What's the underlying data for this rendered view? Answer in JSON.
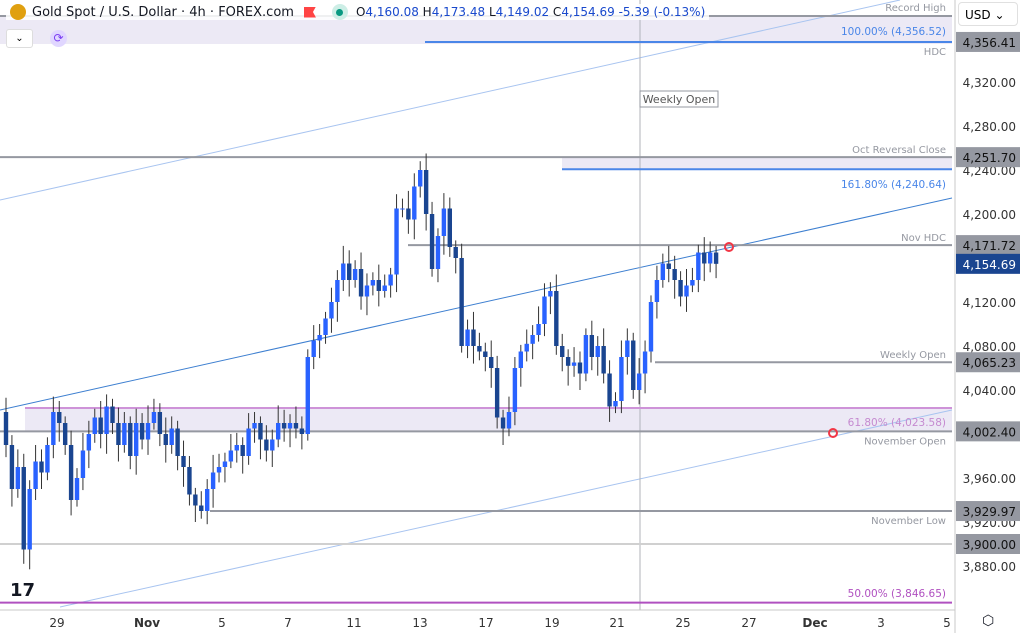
{
  "header": {
    "symbol": "Gold Spot / U.S. Dollar · 4h · FOREX.com",
    "open": "4,160.08",
    "high": "4,173.48",
    "low": "4,149.02",
    "close": "4,154.69",
    "change": "-5.39 (-0.13%)",
    "o": "O",
    "h": "H",
    "l": "L",
    "c": "C"
  },
  "currency": "USD",
  "colors": {
    "up": "#2962ff",
    "down": "#1a4590",
    "level": "#9598a1",
    "fib": "#4a86e8",
    "pink": "#ce93d8",
    "band": "#ece9f5"
  },
  "levels": [
    {
      "label": "Record High",
      "price": 4390
    },
    {
      "label": "HDC",
      "price": 4356.41,
      "tag": "4,356.41"
    },
    {
      "label": "Oct Reversal Close",
      "price": 4251.7,
      "tag": "4,251.70"
    },
    {
      "label": "Nov HDC",
      "price": 4171.72,
      "tag": "4,171.72"
    },
    {
      "label": "Weekly Open",
      "price": 4065.23,
      "tag": "4,065.23"
    },
    {
      "label": "November Open",
      "price": 4002.4,
      "tag": "4,002.40"
    },
    {
      "label": "November Low",
      "price": 3929.97,
      "tag": "3,929.97"
    },
    {
      "label": "",
      "price": 3900.0,
      "tag": "3,900.00"
    }
  ],
  "fibs": {
    "f100": "100.00% (4,356.52)",
    "f1618": "161.80% (4,240.64)",
    "f618": "61.80% (4,023.58)",
    "f50": "50.00% (3,846.65)"
  },
  "weekly_open_tag": "Weekly Open",
  "last_price": "4,154.69",
  "y_ticks": [
    "4,320.00",
    "4,280.00",
    "4,240.00",
    "4,200.00",
    "4,120.00",
    "4,080.00",
    "4,040.00",
    "3,960.00",
    "3,920.00",
    "3,880.00"
  ],
  "y_tick_values": [
    4320,
    4280,
    4240,
    4200,
    4120,
    4080,
    4040,
    3960,
    3920,
    3880
  ],
  "x_ticks": [
    "29",
    "Nov",
    "5",
    "7",
    "11",
    "13",
    "17",
    "19",
    "21",
    "25",
    "27",
    "Dec",
    "3",
    "5"
  ],
  "closes": [
    4020,
    3990,
    3950,
    3970,
    3895,
    3950,
    3975,
    3965,
    3990,
    4020,
    4010,
    3990,
    3940,
    3960,
    3985,
    4000,
    4015,
    4000,
    4025,
    4010,
    3990,
    4010,
    3980,
    4010,
    3995,
    4010,
    4020,
    4000,
    3990,
    4005,
    3980,
    3970,
    3945,
    3935,
    3930,
    3950,
    3965,
    3970,
    3975,
    3985,
    3990,
    3980,
    4005,
    4010,
    3995,
    3985,
    3995,
    4010,
    4005,
    4010,
    4005,
    4000,
    4070,
    4085,
    4090,
    4105,
    4120,
    4140,
    4155,
    4140,
    4150,
    4125,
    4135,
    4140,
    4130,
    4135,
    4145,
    4205,
    4205,
    4195,
    4225,
    4240,
    4200,
    4150,
    4180,
    4205,
    4170,
    4160,
    4080,
    4095,
    4080,
    4075,
    4070,
    4060,
    4015,
    4005,
    4020,
    4060,
    4075,
    4082,
    4090,
    4100,
    4125,
    4130,
    4080,
    4070,
    4062,
    4065,
    4055,
    4090,
    4070,
    4080,
    4055,
    4025,
    4030,
    4070,
    4085,
    4040,
    4055,
    4075,
    4120,
    4140,
    4155,
    4150,
    4140,
    4125,
    4135,
    4140,
    4165,
    4155,
    4165,
    4154.69
  ]
}
